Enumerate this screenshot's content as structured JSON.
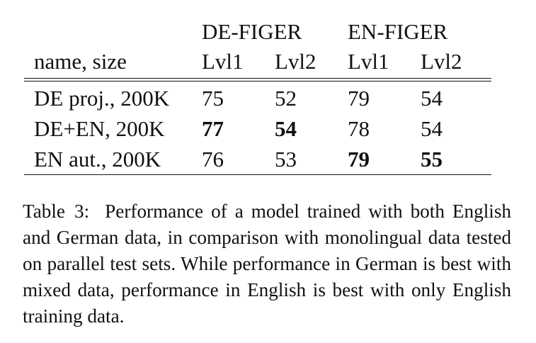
{
  "table": {
    "group_headers": [
      "DE-FIGER",
      "EN-FIGER"
    ],
    "row_header_label": "name, size",
    "level_headers": [
      "Lvl1",
      "Lvl2",
      "Lvl1",
      "Lvl2"
    ],
    "rows": [
      {
        "name": "DE proj., 200K",
        "cells": [
          {
            "value": "75",
            "bold": false
          },
          {
            "value": "52",
            "bold": false
          },
          {
            "value": "79",
            "bold": false
          },
          {
            "value": "54",
            "bold": false
          }
        ]
      },
      {
        "name": "DE+EN, 200K",
        "cells": [
          {
            "value": "77",
            "bold": true
          },
          {
            "value": "54",
            "bold": true
          },
          {
            "value": "78",
            "bold": false
          },
          {
            "value": "54",
            "bold": false
          }
        ]
      },
      {
        "name": "EN aut., 200K",
        "cells": [
          {
            "value": "76",
            "bold": false
          },
          {
            "value": "53",
            "bold": false
          },
          {
            "value": "79",
            "bold": true
          },
          {
            "value": "55",
            "bold": true
          }
        ]
      }
    ]
  },
  "caption": {
    "label": "Table 3:",
    "text": "Performance of a model trained with both English and German data, in comparison with monolingual data tested on parallel test sets. While performance in German is best with mixed data, performance in English is best with only English training data."
  }
}
